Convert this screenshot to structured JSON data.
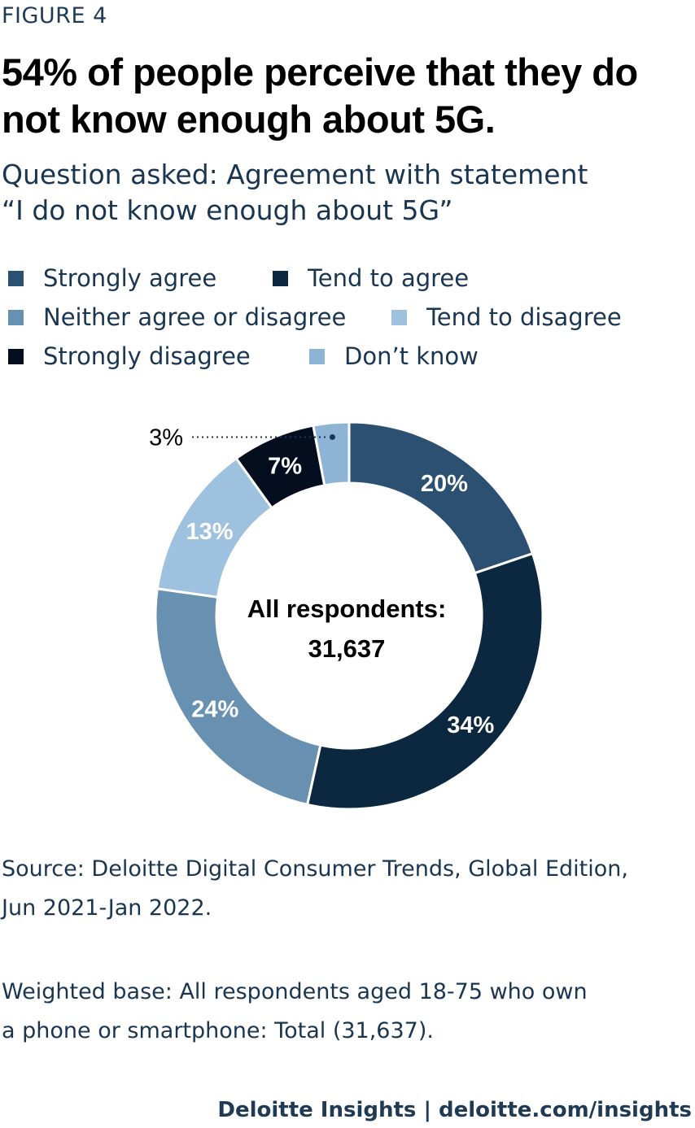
{
  "figure_label": "FIGURE 4",
  "title": "54% of people perceive that they do not know enough about 5G.",
  "subtitle_line1": "Question asked: Agreement with statement",
  "subtitle_line2": "“I do not know enough about 5G”",
  "colors": {
    "strongly_agree": "#2b5071",
    "tend_to_agree": "#0c2740",
    "neither": "#6890b0",
    "tend_to_disagree": "#9dc1de",
    "strongly_disagree": "#040e1e",
    "dont_know": "#8eb4d5"
  },
  "chart_data": {
    "type": "pie",
    "donut": true,
    "center_label_line1": "All respondents:",
    "center_label_line2": "31,637",
    "categories": [
      "Strongly agree",
      "Tend to agree",
      "Neither agree or disagree",
      "Tend to disagree",
      "Strongly disagree",
      "Don’t know"
    ],
    "values": [
      20,
      34,
      24,
      13,
      7,
      3
    ],
    "data_labels": [
      "20%",
      "34%",
      "24%",
      "13%",
      "7%",
      "3%"
    ],
    "legend_position": "top"
  },
  "source_line1": "Source: Deloitte Digital Consumer Trends, Global Edition,",
  "source_line2": "Jun 2021-Jan 2022.",
  "base_line1": "Weighted base: All respondents aged 18-75 who own",
  "base_line2": "a phone or smartphone: Total (31,637).",
  "footer": "Deloitte Insights | deloitte.com/insights"
}
